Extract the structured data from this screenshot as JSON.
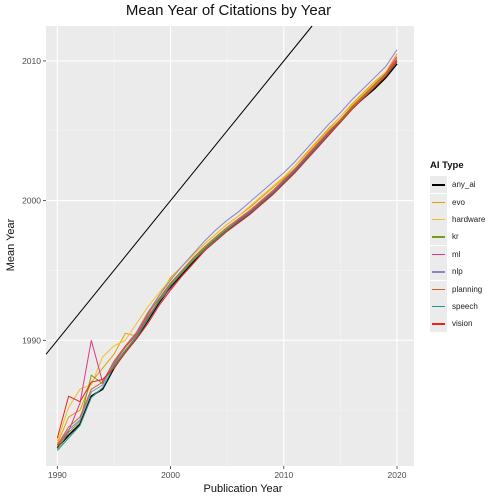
{
  "chart_data": {
    "type": "line",
    "title": "Mean Year of Citations by Year",
    "xlabel": "Publication Year",
    "ylabel": "Mean Year",
    "xlim": [
      1989,
      2021.5
    ],
    "ylim": [
      1981,
      2012.5
    ],
    "x_ticks": [
      1990,
      2000,
      2010,
      2020
    ],
    "y_ticks": [
      1990,
      2000,
      2010
    ],
    "grid": true,
    "legend_title": "AI Type",
    "legend_position": "right",
    "reference_line": {
      "slope": 1,
      "intercept": 0,
      "color": "#000000"
    },
    "series": [
      {
        "name": "any_ai",
        "color": "#000000",
        "x": [
          1990,
          1991,
          1992,
          1993,
          1994,
          1995,
          1996,
          1997,
          1998,
          1999,
          2000,
          2001,
          2002,
          2003,
          2004,
          2005,
          2006,
          2007,
          2008,
          2009,
          2010,
          2011,
          2012,
          2013,
          2014,
          2015,
          2016,
          2017,
          2018,
          2019,
          2020
        ],
        "y": [
          1982.3,
          1983.2,
          1984.0,
          1986.0,
          1986.5,
          1988.0,
          1989.2,
          1990.2,
          1991.4,
          1992.7,
          1993.8,
          1994.7,
          1995.6,
          1996.5,
          1997.2,
          1997.9,
          1998.5,
          1999.1,
          1999.8,
          2000.5,
          2001.3,
          2002.1,
          2003.0,
          2003.9,
          2004.8,
          2005.7,
          2006.6,
          2007.3,
          2008.0,
          2008.8,
          2009.8
        ]
      },
      {
        "name": "evo",
        "color": "#E69F00",
        "x": [
          1990,
          1991,
          1992,
          1993,
          1994,
          1995,
          1996,
          1997,
          1998,
          1999,
          2000,
          2001,
          2002,
          2003,
          2004,
          2005,
          2006,
          2007,
          2008,
          2009,
          2010,
          2011,
          2012,
          2013,
          2014,
          2015,
          2016,
          2017,
          2018,
          2019,
          2020
        ],
        "y": [
          1982.6,
          1984.5,
          1985.0,
          1987.0,
          1988.0,
          1989.0,
          1990.5,
          1990.3,
          1991.8,
          1993.2,
          1994.5,
          1995.3,
          1996.1,
          1996.9,
          1997.6,
          1998.3,
          1998.9,
          1999.5,
          2000.2,
          2000.9,
          2001.6,
          2002.5,
          2003.4,
          2004.3,
          2005.2,
          2006.0,
          2006.9,
          2007.7,
          2008.5,
          2009.2,
          2010.5
        ]
      },
      {
        "name": "hardware",
        "color": "#F0C028",
        "x": [
          1990,
          1991,
          1992,
          1993,
          1994,
          1995,
          1996,
          1997,
          1998,
          1999,
          2000,
          2001,
          2002,
          2003,
          2004,
          2005,
          2006,
          2007,
          2008,
          2009,
          2010,
          2011,
          2012,
          2013,
          2014,
          2015,
          2016,
          2017,
          2018,
          2019,
          2020
        ],
        "y": [
          1982.8,
          1985.2,
          1986.5,
          1986.8,
          1988.8,
          1989.6,
          1990.0,
          1991.2,
          1992.4,
          1993.4,
          1994.4,
          1995.3,
          1996.1,
          1996.9,
          1997.6,
          1998.3,
          1998.9,
          1999.6,
          2000.3,
          2001.0,
          2001.7,
          2002.5,
          2003.3,
          2004.2,
          2005.1,
          2006.0,
          2006.8,
          2007.6,
          2008.4,
          2009.2,
          2010.2
        ]
      },
      {
        "name": "kr",
        "color": "#7A9A1F",
        "x": [
          1990,
          1991,
          1992,
          1993,
          1994,
          1995,
          1996,
          1997,
          1998,
          1999,
          2000,
          2001,
          2002,
          2003,
          2004,
          2005,
          2006,
          2007,
          2008,
          2009,
          2010,
          2011,
          2012,
          2013,
          2014,
          2015,
          2016,
          2017,
          2018,
          2019,
          2020
        ],
        "y": [
          1982.2,
          1983.4,
          1984.2,
          1987.5,
          1986.9,
          1988.2,
          1989.3,
          1990.3,
          1991.6,
          1992.9,
          1994.0,
          1994.9,
          1995.8,
          1996.6,
          1997.3,
          1998.0,
          1998.6,
          1999.2,
          1999.9,
          2000.6,
          2001.4,
          2002.2,
          2003.1,
          2004.0,
          2004.9,
          2005.7,
          2006.6,
          2007.4,
          2008.2,
          2009.0,
          2010.0
        ]
      },
      {
        "name": "ml",
        "color": "#E0358A",
        "x": [
          1990,
          1991,
          1992,
          1993,
          1994,
          1995,
          1996,
          1997,
          1998,
          1999,
          2000,
          2001,
          2002,
          2003,
          2004,
          2005,
          2006,
          2007,
          2008,
          2009,
          2010,
          2011,
          2012,
          2013,
          2014,
          2015,
          2016,
          2017,
          2018,
          2019,
          2020
        ],
        "y": [
          1982.4,
          1983.5,
          1985.5,
          1990.0,
          1987.0,
          1988.3,
          1989.5,
          1990.4,
          1991.7,
          1992.8,
          1993.7,
          1994.6,
          1995.5,
          1996.4,
          1997.2,
          1997.9,
          1998.6,
          1999.2,
          1999.9,
          2000.6,
          2001.4,
          2002.2,
          2003.1,
          2004.0,
          2004.9,
          2005.8,
          2006.7,
          2007.5,
          2008.3,
          2009.1,
          2010.3
        ]
      },
      {
        "name": "nlp",
        "color": "#8B84C8",
        "x": [
          1990,
          1991,
          1992,
          1993,
          1994,
          1995,
          1996,
          1997,
          1998,
          1999,
          2000,
          2001,
          2002,
          2003,
          2004,
          2005,
          2006,
          2007,
          2008,
          2009,
          2010,
          2011,
          2012,
          2013,
          2014,
          2015,
          2016,
          2017,
          2018,
          2019,
          2020
        ],
        "y": [
          1982.5,
          1983.6,
          1984.3,
          1986.3,
          1986.8,
          1988.4,
          1989.6,
          1990.6,
          1992.0,
          1993.2,
          1994.3,
          1995.3,
          1996.2,
          1997.1,
          1997.9,
          1998.6,
          1999.2,
          1999.9,
          2000.6,
          2001.3,
          2002.0,
          2002.8,
          2003.7,
          2004.6,
          2005.5,
          2006.3,
          2007.2,
          2008.0,
          2008.8,
          2009.6,
          2010.8
        ]
      },
      {
        "name": "planning",
        "color": "#C8641E",
        "x": [
          1990,
          1991,
          1992,
          1993,
          1994,
          1995,
          1996,
          1997,
          1998,
          1999,
          2000,
          2001,
          2002,
          2003,
          2004,
          2005,
          2006,
          2007,
          2008,
          2009,
          2010,
          2011,
          2012,
          2013,
          2014,
          2015,
          2016,
          2017,
          2018,
          2019,
          2020
        ],
        "y": [
          1982.5,
          1983.8,
          1984.5,
          1986.5,
          1987.0,
          1988.5,
          1989.6,
          1990.5,
          1991.9,
          1993.0,
          1994.1,
          1995.0,
          1995.9,
          1996.7,
          1997.4,
          1998.1,
          1998.7,
          1999.3,
          2000.0,
          2000.7,
          2001.5,
          2002.3,
          2003.2,
          2004.1,
          2005.0,
          2005.8,
          2006.7,
          2007.5,
          2008.3,
          2009.1,
          2010.1
        ]
      },
      {
        "name": "speech",
        "color": "#1F9A85",
        "x": [
          1990,
          1991,
          1992,
          1993,
          1994,
          1995,
          1996,
          1997,
          1998,
          1999,
          2000,
          2001,
          2002,
          2003,
          2004,
          2005,
          2006,
          2007,
          2008,
          2009,
          2010,
          2011,
          2012,
          2013,
          2014,
          2015,
          2016,
          2017,
          2018,
          2019,
          2020
        ],
        "y": [
          1982.1,
          1983.0,
          1983.9,
          1985.9,
          1986.6,
          1988.1,
          1989.2,
          1990.2,
          1991.5,
          1992.8,
          1993.9,
          1994.8,
          1995.7,
          1996.5,
          1997.2,
          1997.9,
          1998.5,
          1999.1,
          1999.8,
          2000.5,
          2001.3,
          2002.1,
          2003.0,
          2003.9,
          2004.8,
          2005.6,
          2006.5,
          2007.3,
          2008.1,
          2008.9,
          2009.9
        ]
      },
      {
        "name": "vision",
        "color": "#E8231E",
        "x": [
          1990,
          1991,
          1992,
          1993,
          1994,
          1995,
          1996,
          1997,
          1998,
          1999,
          2000,
          2001,
          2002,
          2003,
          2004,
          2005,
          2006,
          2007,
          2008,
          2009,
          2010,
          2011,
          2012,
          2013,
          2014,
          2015,
          2016,
          2017,
          2018,
          2019,
          2020
        ],
        "y": [
          1983.0,
          1986.0,
          1985.6,
          1987.0,
          1987.2,
          1988.0,
          1989.1,
          1990.1,
          1991.2,
          1992.5,
          1993.6,
          1994.6,
          1995.5,
          1996.4,
          1997.1,
          1997.8,
          1998.4,
          1999.0,
          1999.7,
          2000.4,
          2001.2,
          2002.0,
          2002.9,
          2003.8,
          2004.7,
          2005.6,
          2006.5,
          2007.3,
          2008.1,
          2008.9,
          2010.0
        ]
      }
    ]
  }
}
